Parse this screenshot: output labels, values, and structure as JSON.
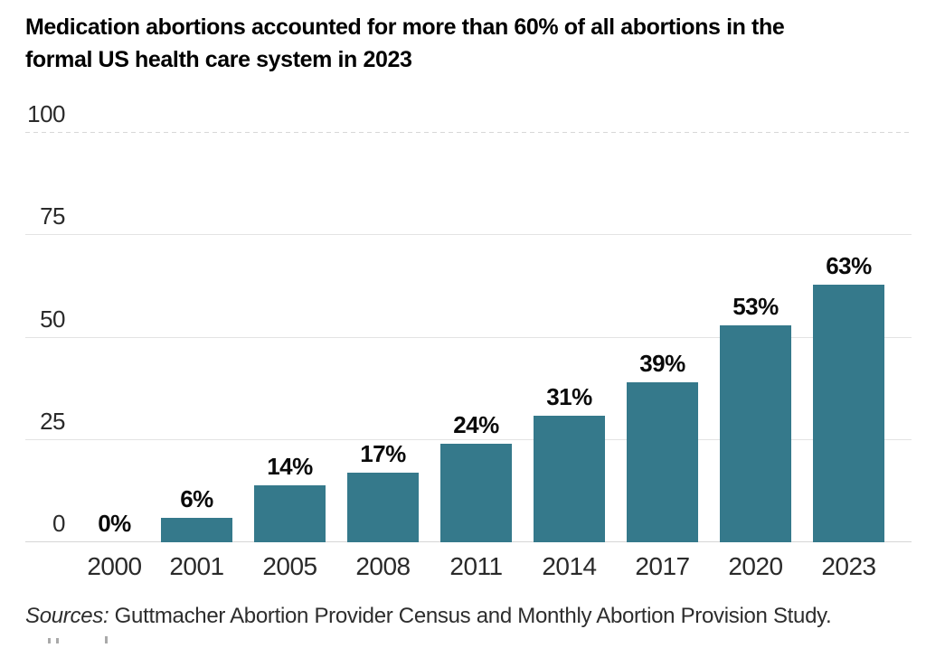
{
  "title": "Medication abortions accounted for more than 60% of all abortions in the\nformal US health care system in 2023",
  "chart_data": {
    "type": "bar",
    "title": "Medication abortions accounted for more than 60% of all abortions in the formal US health care system in 2023",
    "categories": [
      "2000",
      "2001",
      "2005",
      "2008",
      "2011",
      "2014",
      "2017",
      "2020",
      "2023"
    ],
    "values": [
      0,
      6,
      14,
      17,
      24,
      31,
      39,
      53,
      63
    ],
    "value_labels": [
      "0%",
      "6%",
      "14%",
      "17%",
      "24%",
      "31%",
      "39%",
      "53%",
      "63%"
    ],
    "xlabel": "",
    "ylabel": "",
    "ylim": [
      0,
      100
    ],
    "yticks": [
      0,
      25,
      50,
      75,
      100
    ],
    "bar_color": "#35798B",
    "grid": true,
    "legend": false
  },
  "sources": {
    "label": "Sources:",
    "text": " Guttmacher Abortion Provider Census and Monthly Abortion Provision Study."
  }
}
